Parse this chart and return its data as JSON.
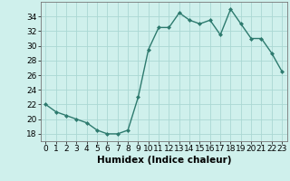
{
  "x": [
    0,
    1,
    2,
    3,
    4,
    5,
    6,
    7,
    8,
    9,
    10,
    11,
    12,
    13,
    14,
    15,
    16,
    17,
    18,
    19,
    20,
    21,
    22,
    23
  ],
  "y": [
    22,
    21,
    20.5,
    20,
    19.5,
    18.5,
    18,
    18,
    18.5,
    23,
    29.5,
    32.5,
    32.5,
    34.5,
    33.5,
    33,
    33.5,
    31.5,
    35,
    33,
    31,
    31,
    29,
    26.5
  ],
  "line_color": "#2d7a6e",
  "marker": "D",
  "marker_size": 2.0,
  "bg_color": "#cff0ec",
  "grid_color": "#aad8d3",
  "xlabel": "Humidex (Indice chaleur)",
  "xlabel_fontsize": 7.5,
  "ylim": [
    17,
    36
  ],
  "xlim": [
    -0.5,
    23.5
  ],
  "yticks": [
    18,
    20,
    22,
    24,
    26,
    28,
    30,
    32,
    34
  ],
  "xticks": [
    0,
    1,
    2,
    3,
    4,
    5,
    6,
    7,
    8,
    9,
    10,
    11,
    12,
    13,
    14,
    15,
    16,
    17,
    18,
    19,
    20,
    21,
    22,
    23
  ],
  "tick_fontsize": 6.5,
  "line_width": 1.0
}
